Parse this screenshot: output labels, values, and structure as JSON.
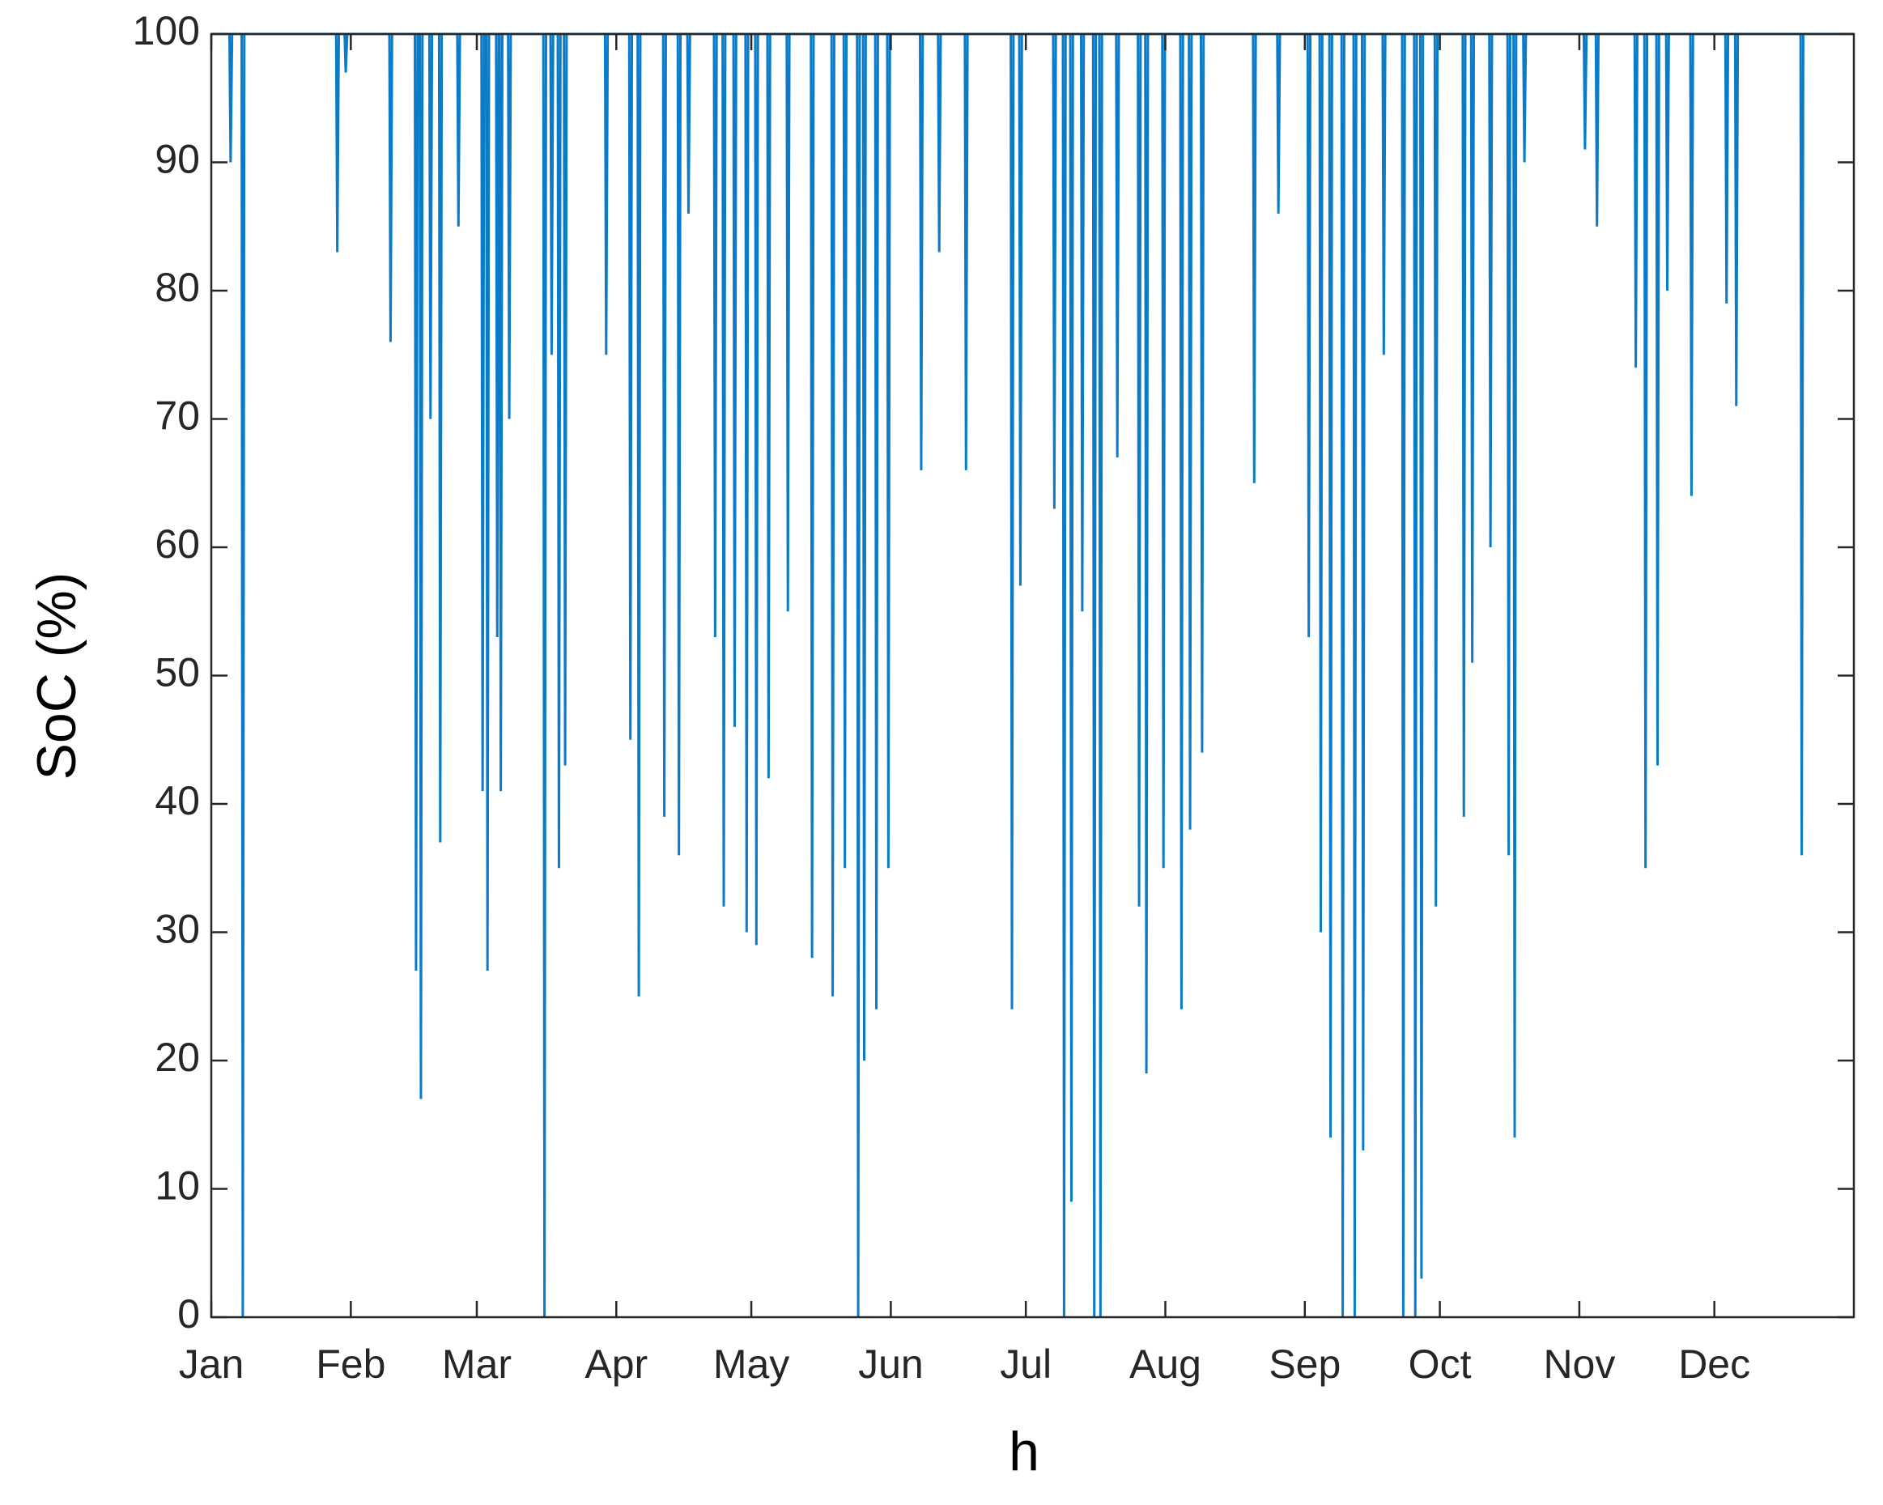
{
  "chart_data": {
    "type": "line",
    "xlabel": "h",
    "ylabel": "SoC (%)",
    "xlim": [
      0,
      8760
    ],
    "ylim": [
      0,
      100
    ],
    "xticks": [
      {
        "value": 0,
        "label": "Jan"
      },
      {
        "value": 744,
        "label": "Feb"
      },
      {
        "value": 1416,
        "label": "Mar"
      },
      {
        "value": 2160,
        "label": "Apr"
      },
      {
        "value": 2880,
        "label": "May"
      },
      {
        "value": 3624,
        "label": "Jun"
      },
      {
        "value": 4344,
        "label": "Jul"
      },
      {
        "value": 5088,
        "label": "Aug"
      },
      {
        "value": 5832,
        "label": "Sep"
      },
      {
        "value": 6552,
        "label": "Oct"
      },
      {
        "value": 7296,
        "label": "Nov"
      },
      {
        "value": 8016,
        "label": "Dec"
      }
    ],
    "yticks": [
      0,
      10,
      20,
      30,
      40,
      50,
      60,
      70,
      80,
      90,
      100
    ],
    "x": [
      0,
      97,
      103,
      111,
      162,
      168,
      176,
      666,
      672,
      680,
      711,
      717,
      725,
      950,
      956,
      964,
      1086,
      1092,
      1100,
      1112,
      1118,
      1126,
      1163,
      1169,
      1177,
      1215,
      1221,
      1229,
      1312,
      1318,
      1326,
      1441,
      1447,
      1455,
      1467,
      1473,
      1481,
      1519,
      1525,
      1533,
      1538,
      1544,
      1552,
      1583,
      1589,
      1597,
      1771,
      1777,
      1785,
      1809,
      1815,
      1823,
      1848,
      1854,
      1862,
      1881,
      1887,
      1895,
      2100,
      2106,
      2114,
      2229,
      2235,
      2243,
      2274,
      2280,
      2288,
      2410,
      2416,
      2424,
      2488,
      2494,
      2502,
      2539,
      2545,
      2553,
      2681,
      2687,
      2695,
      2727,
      2733,
      2741,
      2785,
      2791,
      2799,
      2849,
      2855,
      2863,
      2901,
      2907,
      2915,
      2966,
      2972,
      2980,
      3069,
      3075,
      3083,
      3198,
      3204,
      3212,
      3308,
      3314,
      3322,
      3373,
      3379,
      3387,
      3444,
      3450,
      3458,
      3476,
      3482,
      3490,
      3541,
      3547,
      3555,
      3605,
      3611,
      3619,
      3780,
      3786,
      3794,
      3876,
      3882,
      3890,
      4019,
      4025,
      4033,
      4264,
      4270,
      4278,
      4309,
      4315,
      4323,
      4490,
      4496,
      4504,
      4542,
      4548,
      4556,
      4581,
      4587,
      4595,
      4639,
      4645,
      4653,
      4703,
      4709,
      4717,
      4736,
      4742,
      4750,
      4826,
      4832,
      4840,
      4942,
      4948,
      4956,
      4981,
      4987,
      4995,
      5072,
      5078,
      5086,
      5168,
      5174,
      5182,
      5214,
      5220,
      5228,
      5278,
      5284,
      5292,
      5556,
      5562,
      5570,
      5685,
      5691,
      5699,
      5847,
      5853,
      5861,
      5911,
      5917,
      5925,
      5963,
      5969,
      5977,
      6028,
      6034,
      6042,
      6092,
      6098,
      6106,
      6137,
      6143,
      6151,
      6247,
      6253,
      6261,
      6351,
      6357,
      6365,
      6415,
      6421,
      6429,
      6448,
      6454,
      6462,
      6525,
      6531,
      6539,
      6674,
      6680,
      6688,
      6719,
      6725,
      6733,
      6816,
      6822,
      6830,
      6913,
      6919,
      6927,
      6945,
      6951,
      6959,
      6997,
      7003,
      7011,
      7320,
      7326,
      7334,
      7384,
      7390,
      7398,
      7591,
      7597,
      7605,
      7643,
      7649,
      7657,
      7707,
      7713,
      7721,
      7759,
      7765,
      7773,
      7888,
      7894,
      7902,
      8075,
      8081,
      8089,
      8127,
      8133,
      8141,
      8476,
      8482,
      8490,
      8760
    ],
    "series": [
      {
        "color": "#0a7bc8",
        "values": [
          100,
          100,
          90,
          100,
          100,
          0,
          100,
          100,
          83,
          100,
          100,
          97,
          100,
          100,
          76,
          100,
          100,
          27,
          100,
          100,
          17,
          100,
          100,
          70,
          100,
          100,
          37,
          100,
          100,
          85,
          100,
          100,
          41,
          100,
          100,
          27,
          100,
          100,
          53,
          100,
          100,
          41,
          100,
          100,
          70,
          100,
          100,
          0,
          100,
          100,
          75,
          100,
          100,
          35,
          100,
          100,
          43,
          100,
          100,
          75,
          100,
          100,
          45,
          100,
          100,
          25,
          100,
          100,
          39,
          100,
          100,
          36,
          100,
          100,
          86,
          100,
          100,
          53,
          100,
          100,
          32,
          100,
          100,
          46,
          100,
          100,
          30,
          100,
          100,
          29,
          100,
          100,
          42,
          100,
          100,
          55,
          100,
          100,
          28,
          100,
          100,
          25,
          100,
          100,
          35,
          100,
          100,
          0,
          100,
          100,
          20,
          100,
          100,
          24,
          100,
          100,
          35,
          100,
          100,
          66,
          100,
          100,
          83,
          100,
          100,
          66,
          100,
          100,
          24,
          100,
          100,
          57,
          100,
          100,
          63,
          100,
          100,
          0,
          100,
          100,
          9,
          100,
          100,
          55,
          100,
          100,
          0,
          100,
          100,
          0,
          100,
          100,
          67,
          100,
          100,
          32,
          100,
          100,
          19,
          100,
          100,
          35,
          100,
          100,
          24,
          100,
          100,
          38,
          100,
          100,
          44,
          100,
          100,
          65,
          100,
          100,
          86,
          100,
          100,
          53,
          100,
          100,
          30,
          100,
          100,
          14,
          100,
          100,
          0,
          100,
          100,
          0,
          100,
          100,
          13,
          100,
          100,
          75,
          100,
          100,
          0,
          100,
          100,
          0,
          100,
          100,
          3,
          100,
          100,
          32,
          100,
          100,
          39,
          100,
          100,
          51,
          100,
          100,
          60,
          100,
          100,
          36,
          100,
          100,
          14,
          100,
          100,
          90,
          100,
          100,
          91,
          100,
          100,
          85,
          100,
          100,
          74,
          100,
          100,
          35,
          100,
          100,
          43,
          100,
          100,
          80,
          100,
          100,
          64,
          100,
          100,
          79,
          100,
          100,
          71,
          100,
          100,
          36,
          100,
          100
        ]
      }
    ]
  }
}
